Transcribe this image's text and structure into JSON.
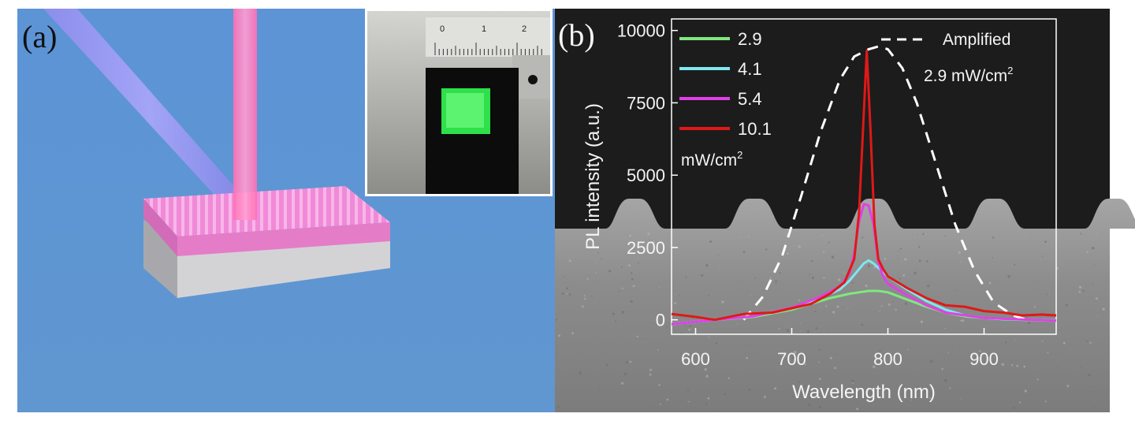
{
  "panel_a": {
    "label": "(a)",
    "inset_ruler_ticks": [
      "0",
      "1",
      "2"
    ]
  },
  "panel_b": {
    "label": "(b)",
    "legend_unit": "mW/cm",
    "legend_unit_sup": "2",
    "amplified_label": "Amplified",
    "amplified_condition": "2.9 mW/cm",
    "amplified_condition_sup": "2"
  },
  "colors": {
    "background_blue": "#5f95d3",
    "grating_pink": "#f28ad8",
    "substrate_gray": "#c8c8cc",
    "laser_blue": "#8c82f0",
    "laser_pink": "#ff7fc0",
    "sem_dark": "#1e1e1e",
    "sem_gray": "#8f8f8f"
  },
  "chart_data": {
    "type": "line",
    "xlabel": "Wavelength (nm)",
    "ylabel": "PL intensity (a.u.)",
    "xlim": [
      575,
      975
    ],
    "ylim": [
      -500,
      10400
    ],
    "xticks": [
      600,
      700,
      800,
      900
    ],
    "yticks": [
      0,
      2500,
      5000,
      7500,
      10000
    ],
    "grid": false,
    "legend_position": "top-left",
    "series": [
      {
        "name": "2.9",
        "color": "#7fe87f",
        "style": "solid",
        "x": [
          575,
          620,
          660,
          700,
          720,
          740,
          760,
          770,
          780,
          790,
          800,
          820,
          840,
          860,
          880,
          900,
          920,
          940,
          960,
          975
        ],
        "y": [
          -150,
          0,
          100,
          350,
          550,
          750,
          900,
          950,
          1000,
          1000,
          950,
          700,
          450,
          250,
          120,
          60,
          20,
          0,
          -20,
          -30
        ]
      },
      {
        "name": "4.1",
        "color": "#7fe8f0",
        "style": "solid",
        "x": [
          575,
          620,
          660,
          700,
          730,
          750,
          760,
          770,
          775,
          780,
          785,
          790,
          800,
          820,
          840,
          860,
          880,
          900,
          920,
          950,
          975
        ],
        "y": [
          -150,
          0,
          120,
          420,
          750,
          1050,
          1350,
          1750,
          1950,
          2050,
          1950,
          1800,
          1500,
          1050,
          650,
          350,
          150,
          60,
          20,
          0,
          -20
        ]
      },
      {
        "name": "5.4",
        "color": "#e040e8",
        "style": "solid",
        "x": [
          575,
          620,
          660,
          700,
          730,
          750,
          760,
          765,
          770,
          775,
          780,
          785,
          790,
          795,
          800,
          820,
          840,
          860,
          900,
          950,
          975
        ],
        "y": [
          -150,
          0,
          120,
          420,
          800,
          1150,
          1600,
          2300,
          3400,
          4000,
          3950,
          3300,
          2000,
          1500,
          1250,
          850,
          500,
          250,
          60,
          0,
          -30
        ]
      },
      {
        "name": "10.1",
        "color": "#e01818",
        "style": "solid",
        "x": [
          575,
          600,
          620,
          650,
          680,
          700,
          720,
          740,
          755,
          765,
          770,
          774,
          778,
          782,
          786,
          790,
          795,
          800,
          820,
          840,
          860,
          880,
          900,
          920,
          940,
          960,
          975
        ],
        "y": [
          200,
          100,
          0,
          200,
          250,
          400,
          550,
          900,
          1300,
          2100,
          3700,
          6500,
          9300,
          6500,
          3300,
          2100,
          1750,
          1500,
          1100,
          750,
          500,
          450,
          300,
          250,
          150,
          180,
          150
        ]
      },
      {
        "name": "Amplified",
        "color": "#ffffff",
        "style": "dashed",
        "x": [
          650,
          670,
          690,
          710,
          730,
          750,
          765,
          780,
          790,
          800,
          815,
          830,
          850,
          870,
          890,
          910,
          930,
          945
        ],
        "y": [
          0,
          800,
          2200,
          4300,
          6500,
          8300,
          9100,
          9350,
          9450,
          9350,
          8700,
          7500,
          5400,
          3300,
          1700,
          600,
          150,
          0
        ]
      }
    ]
  }
}
